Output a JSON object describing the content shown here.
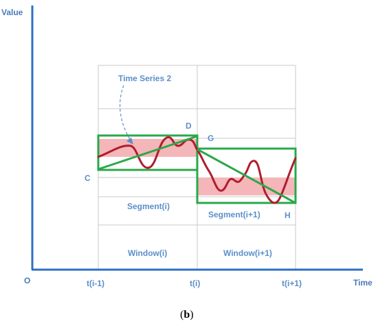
{
  "axes": {
    "y_label": "Value",
    "x_label": "Time",
    "origin_label": "O"
  },
  "ticks": [
    "t(i-1)",
    "t(i)",
    "t(i+1)"
  ],
  "points": {
    "c": "C",
    "d": "D",
    "g": "G",
    "h": "H"
  },
  "series_label": "Time Series 2",
  "segments": [
    "Segment(i)",
    "Segment(i+1)"
  ],
  "windows": [
    "Window(i)",
    "Window(i+1)"
  ],
  "caption": {
    "open": "(",
    "letter": "b",
    "close": ")"
  },
  "colors": {
    "axis": "#2e6fc0",
    "grid": "#c8c8c8",
    "box": "#2aa84a",
    "band": "#f4b6b8",
    "curve": "#b01c2e",
    "arrow": "#5b8fc9"
  }
}
